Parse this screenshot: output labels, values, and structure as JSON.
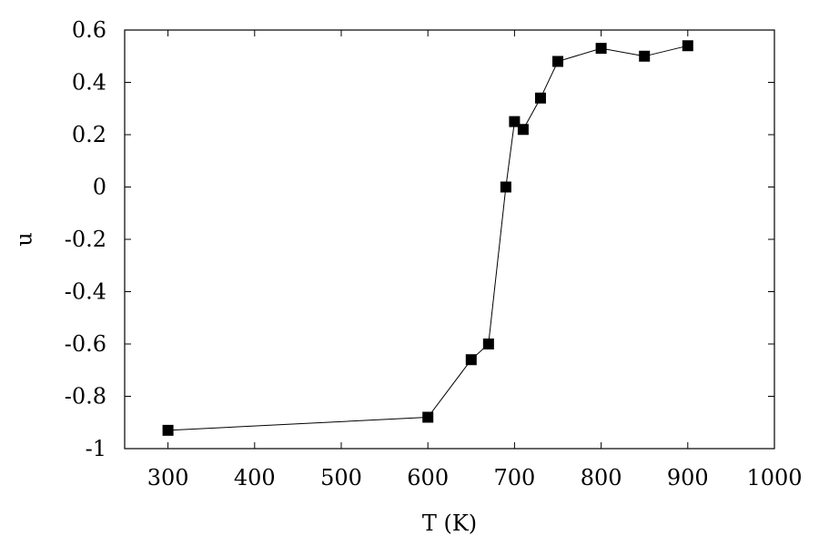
{
  "chart_data": {
    "type": "line",
    "title": "",
    "xlabel": "T (K)",
    "ylabel": "u",
    "xlim": [
      250,
      1000
    ],
    "ylim": [
      -1,
      0.6
    ],
    "xticks": [
      300,
      400,
      500,
      600,
      700,
      800,
      900,
      1000
    ],
    "yticks": [
      -1,
      -0.8,
      -0.6,
      -0.4,
      -0.2,
      0,
      0.2,
      0.4,
      0.6
    ],
    "xtick_labels": [
      "300",
      "400",
      "500",
      "600",
      "700",
      "800",
      "900",
      "1000"
    ],
    "ytick_labels": [
      "-1",
      "-0.8",
      "-0.6",
      "-0.4",
      "-0.2",
      "0",
      "0.2",
      "0.4",
      "0.6"
    ],
    "grid": false,
    "legend": "none",
    "marker": "square",
    "line_color": "#000000",
    "marker_color": "#000000",
    "series": [
      {
        "x": [
          300,
          600,
          650,
          670,
          690,
          700,
          710,
          730,
          750,
          800,
          850,
          900
        ],
        "y": [
          -0.93,
          -0.88,
          -0.66,
          -0.6,
          0.0,
          0.25,
          0.22,
          0.34,
          0.48,
          0.53,
          0.5,
          0.54
        ]
      }
    ]
  }
}
